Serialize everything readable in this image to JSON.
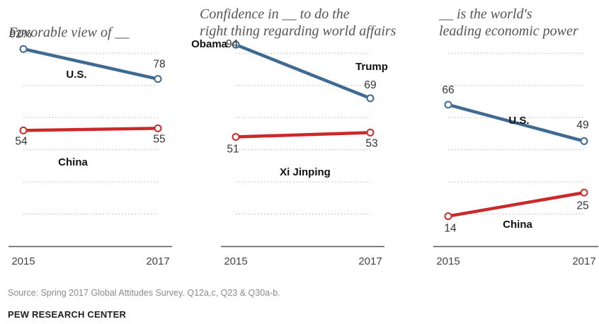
{
  "colors": {
    "us": "#3f6a92",
    "china": "#cc2a2a"
  },
  "chart_data": [
    {
      "type": "line",
      "title": "Favorable view of __",
      "x": [
        "2015",
        "2017"
      ],
      "ylim": [
        0,
        100
      ],
      "value_format": "first-percent",
      "series": [
        {
          "name": "U.S.",
          "color_key": "us",
          "values": [
            92,
            78
          ]
        },
        {
          "name": "China",
          "color_key": "china",
          "values": [
            54,
            55
          ]
        }
      ]
    },
    {
      "type": "line",
      "title": "Confidence in __ to do the right thing regarding world affairs",
      "x": [
        "2015",
        "2017"
      ],
      "ylim": [
        0,
        100
      ],
      "series": [
        {
          "name": "Obama",
          "end_name": "Trump",
          "color_key": "us",
          "values": [
            94,
            69
          ]
        },
        {
          "name": "Xi Jinping",
          "color_key": "china",
          "values": [
            51,
            53
          ]
        }
      ]
    },
    {
      "type": "line",
      "title": "__ is the world's leading economic power",
      "x": [
        "2015",
        "2017"
      ],
      "ylim": [
        0,
        100
      ],
      "series": [
        {
          "name": "U.S.",
          "color_key": "us",
          "values": [
            66,
            49
          ]
        },
        {
          "name": "China",
          "color_key": "china",
          "values": [
            14,
            25
          ]
        }
      ]
    }
  ],
  "footer": {
    "source": "Source: Spring 2017 Global Attitudes Survey. Q12a,c, Q23 & Q30a-b.",
    "credit": "PEW RESEARCH CENTER"
  }
}
